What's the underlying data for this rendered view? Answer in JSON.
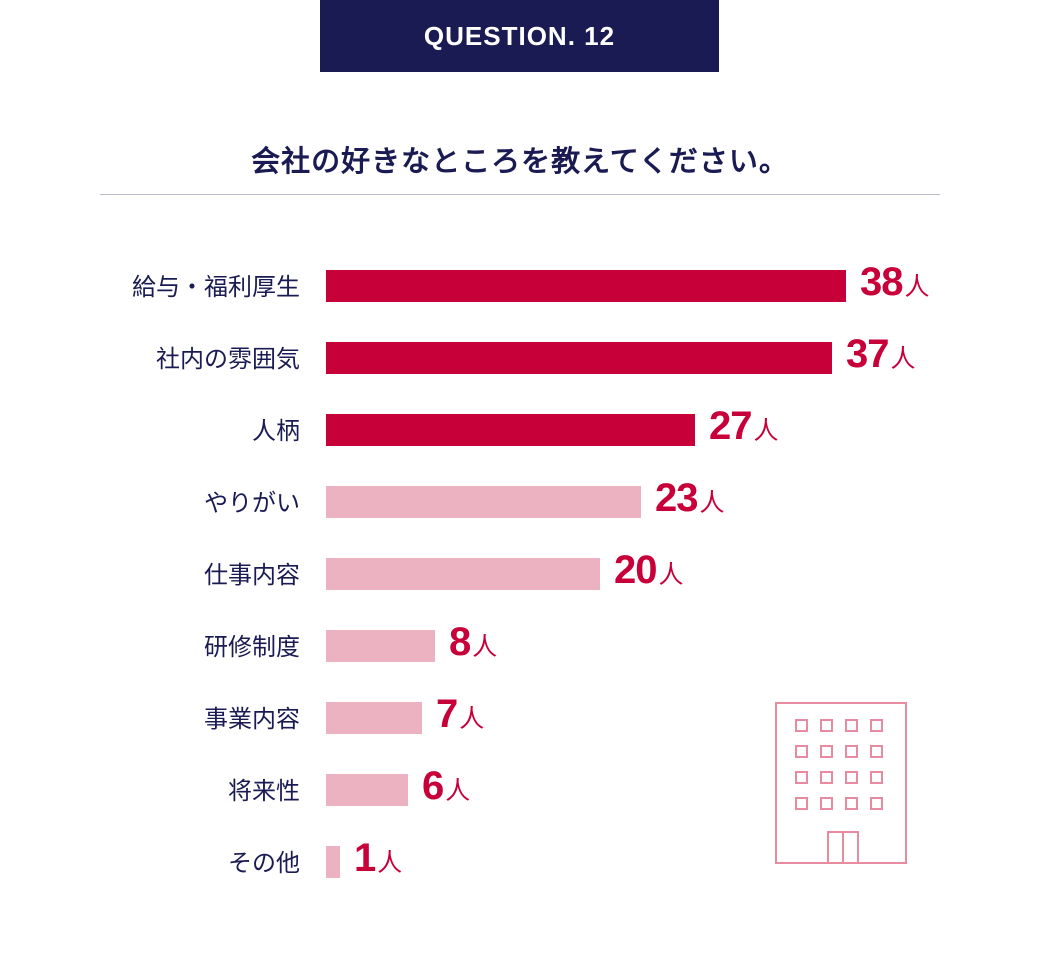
{
  "header": {
    "badge": "QUESTION. 12"
  },
  "question": "会社の好きなところを教えてください。",
  "colors": {
    "navy": "#1a1b52",
    "highlight_bar": "#c8003a",
    "regular_bar": "#edb2c1",
    "label_red": "#c8003a",
    "rule": "#b9bccd",
    "icon_stroke": "#e88aa0"
  },
  "decoration": {
    "icon": "building-icon"
  },
  "chart_data": {
    "type": "bar",
    "orientation": "horizontal",
    "title": "会社の好きなところを教えてください。",
    "unit": "人",
    "categories": [
      "給与・福利厚生",
      "社内の雰囲気",
      "人柄",
      "やりがい",
      "仕事内容",
      "研修制度",
      "事業内容",
      "将来性",
      "その他"
    ],
    "values": [
      38,
      37,
      27,
      23,
      20,
      8,
      7,
      6,
      1
    ],
    "highlighted": [
      true,
      true,
      true,
      false,
      false,
      false,
      false,
      false,
      false
    ],
    "xlim": [
      0,
      38
    ],
    "grid": false,
    "legend": "none"
  }
}
